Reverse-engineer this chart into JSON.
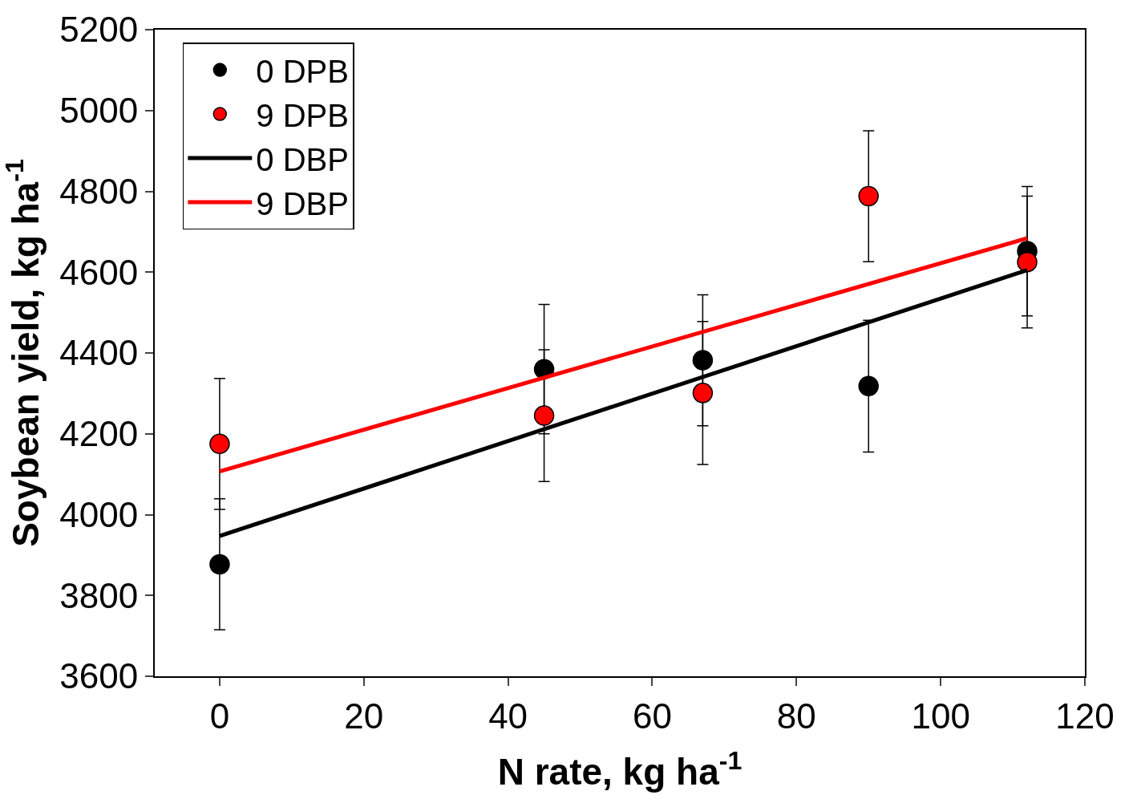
{
  "chart_data": {
    "type": "scatter",
    "xlabel": "N rate, kg ha$^{-1}$",
    "ylabel": "Soybean yield, kg ha$^{-1}$",
    "xlim": [
      -9,
      120
    ],
    "ylim": [
      3600,
      5200
    ],
    "xticks": [
      0,
      20,
      40,
      60,
      80,
      100,
      120
    ],
    "yticks": [
      3600,
      3800,
      4000,
      4200,
      4400,
      4600,
      4800,
      5000,
      5200
    ],
    "legend": "top left",
    "marker": "circle",
    "series": [
      {
        "name": "0 DPB",
        "color": "#000000",
        "x": [
          0,
          45,
          67,
          90,
          112
        ],
        "values": [
          3877,
          4360,
          4382,
          4318,
          4652
        ],
        "errors": [
          162,
          160,
          162,
          163,
          160
        ]
      },
      {
        "name": "9 DPB",
        "color": "#ff0000",
        "x": [
          0,
          45,
          67,
          90,
          112
        ],
        "values": [
          4175,
          4245,
          4301,
          4788,
          4625
        ],
        "errors": [
          162,
          163,
          177,
          162,
          163
        ]
      },
      {
        "name": "0 DBP",
        "type": "line",
        "marker": "none",
        "color": "#000000",
        "x": [
          0,
          112
        ],
        "values": [
          3947,
          4605
        ]
      },
      {
        "name": "9 DBP",
        "type": "line",
        "marker": "none",
        "color": "#ff0000",
        "x": [
          0,
          112
        ],
        "values": [
          4107,
          4684
        ]
      }
    ]
  }
}
